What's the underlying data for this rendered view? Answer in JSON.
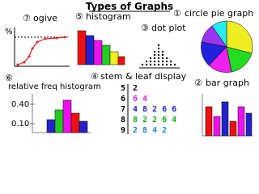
{
  "title": "Types of Graphs",
  "panels": {
    "ogive": {
      "number": "⑦",
      "label": "ogive",
      "axis_label": "%"
    },
    "histogram": {
      "number": "⑤",
      "label": "histogram"
    },
    "pie": {
      "number": "①",
      "label": "circle pie graph"
    },
    "dot_plot": {
      "number": "③",
      "label": "dot plot"
    },
    "relative_freq_histogram": {
      "number": "⑥",
      "label": "relative freq histogram",
      "yticks": [
        "0.40",
        "0.10"
      ]
    },
    "stem_leaf": {
      "number": "④",
      "label": "stem & leaf display",
      "rows": [
        {
          "stem": "5",
          "leaves": "2"
        },
        {
          "stem": "6",
          "leaves": "6 4"
        },
        {
          "stem": "7",
          "leaves": "4 8 2 6 6"
        },
        {
          "stem": "8",
          "leaves": "8 2 2 6 4"
        },
        {
          "stem": "9",
          "leaves": "2 8 4 2"
        }
      ]
    },
    "bar_graph": {
      "number": "②",
      "label": "bar graph"
    }
  }
}
